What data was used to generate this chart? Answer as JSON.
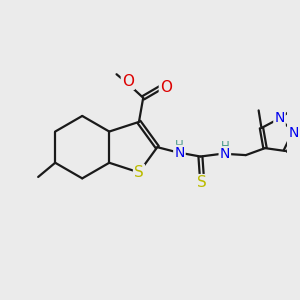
{
  "bg_color": "#ebebeb",
  "bond_color": "#1a1a1a",
  "bond_width": 1.6,
  "atom_colors": {
    "C": "#1a1a1a",
    "N": "#0000ee",
    "O": "#dd0000",
    "S": "#bbbb00",
    "H": "#4a9a8a"
  },
  "font_size_atom": 10,
  "font_size_small": 8.5,
  "font_size_methyl": 7.5
}
